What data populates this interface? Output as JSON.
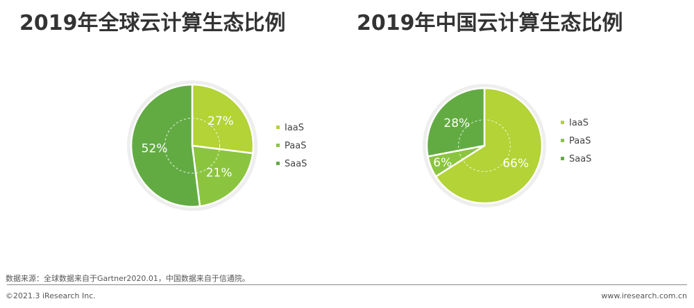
{
  "colors": {
    "iaas": "#b3d336",
    "paas": "#8bc53f",
    "saas": "#62ab43",
    "halo": "#eeeeee"
  },
  "chart_data": [
    {
      "type": "pie",
      "title": "2019年全球云计算生态比例",
      "categories": [
        "IaaS",
        "PaaS",
        "SaaS"
      ],
      "values": [
        27,
        21,
        52
      ],
      "labels": [
        "27%",
        "21%",
        "52%"
      ],
      "legend": [
        "IaaS",
        "PaaS",
        "SaaS"
      ],
      "legend_position": "right"
    },
    {
      "type": "pie",
      "title": "2019年中国云计算生态比例",
      "categories": [
        "IaaS",
        "PaaS",
        "SaaS"
      ],
      "values": [
        66,
        6,
        28
      ],
      "labels": [
        "66%",
        "6%",
        "28%"
      ],
      "legend": [
        "IaaS",
        "PaaS",
        "SaaS"
      ],
      "legend_position": "right"
    }
  ],
  "footer": {
    "source": "数据来源：全球数据来自于Gartner2020.01，中国数据来自于信通院。",
    "copyright": "©2021.3 iResearch Inc.",
    "website": "www.iresearch.com.cn"
  }
}
